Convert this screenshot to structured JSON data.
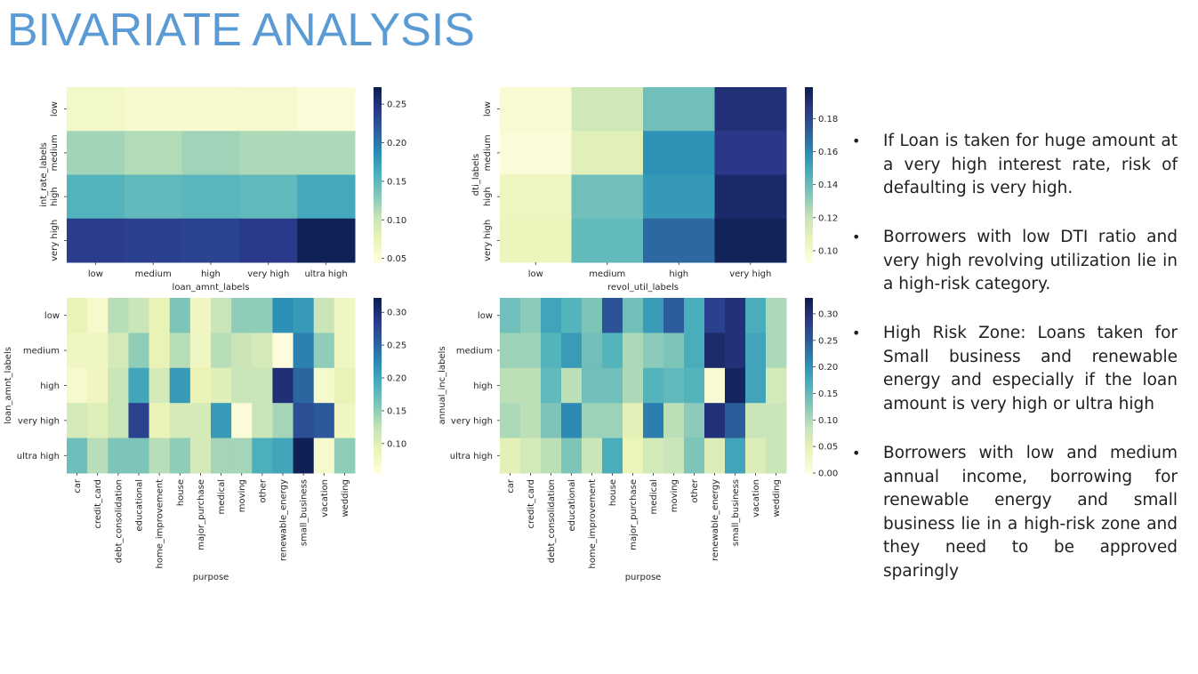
{
  "page": {
    "title": "BIVARIATE ANALYSIS"
  },
  "bullets": [
    "If Loan is taken for huge amount at a very high interest rate, risk of defaulting is very high.",
    "Borrowers with low DTI ratio and very high revolving utilization lie in a high-risk category.",
    "High Risk Zone: Loans taken for Small business and renewable energy and especially if the loan amount is very high or ultra high",
    "Borrowers with low and medium annual income, borrowing for renewable energy and small business lie in a high-risk zone and they need to be approved sparingly"
  ],
  "colormap": "YlGnBu",
  "chart_data": [
    {
      "type": "heatmap",
      "xlabel": "loan_amnt_labels",
      "ylabel": "int_rate_labels",
      "x": [
        "low",
        "medium",
        "high",
        "very high",
        "ultra high"
      ],
      "y": [
        "low",
        "medium",
        "high",
        "very high"
      ],
      "values": [
        [
          0.061,
          0.056,
          0.056,
          0.057,
          0.049
        ],
        [
          0.118,
          0.111,
          0.119,
          0.113,
          0.113
        ],
        [
          0.156,
          0.148,
          0.152,
          0.149,
          0.165
        ],
        [
          0.241,
          0.238,
          0.235,
          0.243,
          0.27
        ]
      ],
      "vmin": 0.045,
      "vmax": 0.272,
      "cbar_ticks": [
        0.05,
        0.1,
        0.15,
        0.2,
        0.25
      ],
      "cbar_tick_labels": [
        "0.05",
        "0.10",
        "0.15",
        "0.20",
        "0.25"
      ]
    },
    {
      "type": "heatmap",
      "xlabel": "revol_util_labels",
      "ylabel": "dti_labels",
      "x": [
        "low",
        "medium",
        "high",
        "very high"
      ],
      "y": [
        "low",
        "medium",
        "high",
        "very high"
      ],
      "values": [
        [
          0.097,
          0.117,
          0.138,
          0.19
        ],
        [
          0.095,
          0.11,
          0.158,
          0.186
        ],
        [
          0.104,
          0.138,
          0.155,
          0.193
        ],
        [
          0.105,
          0.141,
          0.17,
          0.197
        ]
      ],
      "vmin": 0.093,
      "vmax": 0.199,
      "cbar_ticks": [
        0.1,
        0.12,
        0.14,
        0.16,
        0.18
      ],
      "cbar_tick_labels": [
        "0.10",
        "0.12",
        "0.14",
        "0.16",
        "0.18"
      ]
    },
    {
      "type": "heatmap",
      "xlabel": "purpose",
      "ylabel": "loan_amnt_labels",
      "x": [
        "car",
        "credit_card",
        "debt_consolidation",
        "educational",
        "home_improvement",
        "house",
        "major_purchase",
        "medical",
        "moving",
        "other",
        "renewable_energy",
        "small_business",
        "vacation",
        "wedding"
      ],
      "y": [
        "low",
        "medium",
        "high",
        "very high",
        "ultra high"
      ],
      "values": [
        [
          0.09,
          0.07,
          0.13,
          0.12,
          0.09,
          0.16,
          0.08,
          0.12,
          0.15,
          0.15,
          0.22,
          0.21,
          0.12,
          0.08
        ],
        [
          0.08,
          0.08,
          0.11,
          0.15,
          0.09,
          0.13,
          0.08,
          0.13,
          0.12,
          0.11,
          0.05,
          0.23,
          0.15,
          0.08
        ],
        [
          0.07,
          0.08,
          0.12,
          0.2,
          0.11,
          0.21,
          0.09,
          0.1,
          0.12,
          0.12,
          0.3,
          0.25,
          0.07,
          0.09
        ],
        [
          0.11,
          0.1,
          0.12,
          0.28,
          0.09,
          0.11,
          0.11,
          0.21,
          0.06,
          0.12,
          0.14,
          0.27,
          0.26,
          0.08
        ],
        [
          0.17,
          0.13,
          0.16,
          0.16,
          0.13,
          0.15,
          0.11,
          0.14,
          0.14,
          0.19,
          0.2,
          0.32,
          0.07,
          0.15
        ]
      ],
      "vmin": 0.055,
      "vmax": 0.322,
      "cbar_ticks": [
        0.1,
        0.15,
        0.2,
        0.25,
        0.3
      ],
      "cbar_tick_labels": [
        "0.10",
        "0.15",
        "0.20",
        "0.25",
        "0.30"
      ]
    },
    {
      "type": "heatmap",
      "xlabel": "purpose",
      "ylabel": "annual_inc_labels",
      "x": [
        "car",
        "credit_card",
        "debt_consolidation",
        "educational",
        "home_improvement",
        "house",
        "major_purchase",
        "medical",
        "moving",
        "other",
        "renewable_energy",
        "small_business",
        "vacation",
        "wedding"
      ],
      "y": [
        "low",
        "medium",
        "high",
        "very high",
        "ultra high"
      ],
      "values": [
        [
          0.14,
          0.12,
          0.18,
          0.16,
          0.13,
          0.26,
          0.14,
          0.19,
          0.25,
          0.17,
          0.28,
          0.3,
          0.17,
          0.1
        ],
        [
          0.11,
          0.11,
          0.16,
          0.19,
          0.14,
          0.16,
          0.1,
          0.12,
          0.13,
          0.17,
          0.31,
          0.3,
          0.18,
          0.1
        ],
        [
          0.09,
          0.09,
          0.15,
          0.09,
          0.14,
          0.14,
          0.1,
          0.16,
          0.15,
          0.16,
          0.01,
          0.32,
          0.18,
          0.07
        ],
        [
          0.1,
          0.09,
          0.13,
          0.21,
          0.11,
          0.11,
          0.05,
          0.22,
          0.09,
          0.12,
          0.3,
          0.25,
          0.08,
          0.08
        ],
        [
          0.05,
          0.07,
          0.09,
          0.13,
          0.08,
          0.17,
          0.04,
          0.07,
          0.08,
          0.13,
          0.06,
          0.18,
          0.06,
          0.08
        ]
      ],
      "vmin": 0.0,
      "vmax": 0.33,
      "cbar_ticks": [
        0.0,
        0.05,
        0.1,
        0.15,
        0.2,
        0.25,
        0.3
      ],
      "cbar_tick_labels": [
        "0.00",
        "0.05",
        "0.10",
        "0.15",
        "0.20",
        "0.25",
        "0.30"
      ]
    }
  ]
}
